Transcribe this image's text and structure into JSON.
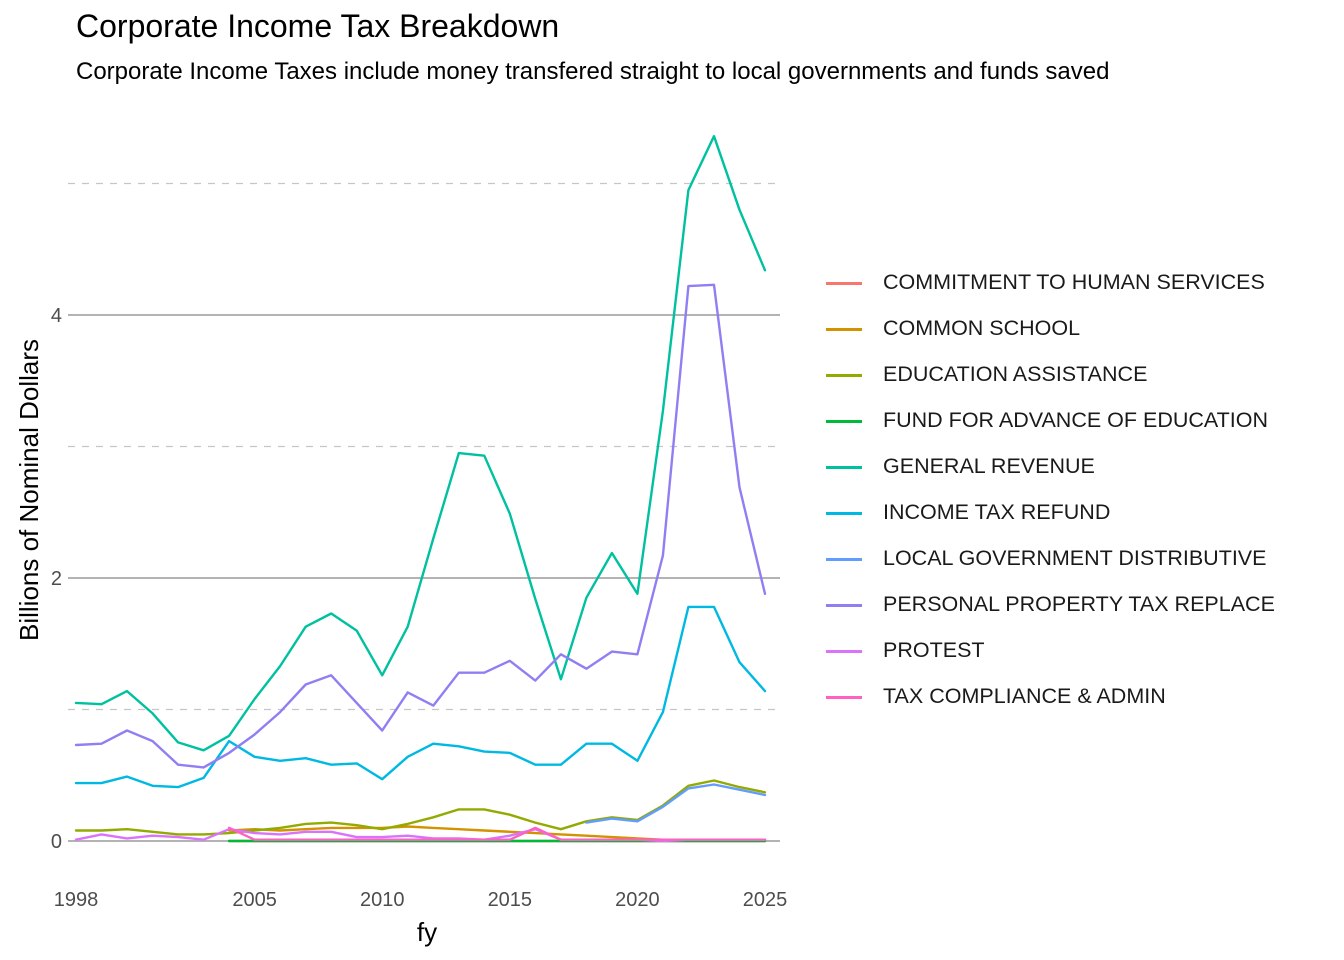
{
  "chart_data": {
    "type": "line",
    "title": "Corporate Income Tax Breakdown",
    "subtitle": "Corporate Income Taxes include money transfered straight to local governments and funds saved",
    "xlabel": "fy",
    "ylabel": "Billions of Nominal Dollars",
    "xlim": [
      1998,
      2025
    ],
    "ylim": [
      -0.4,
      5.4
    ],
    "x_ticks": [
      1998,
      2005,
      2010,
      2015,
      2020,
      2025
    ],
    "y_ticks": [
      0,
      2,
      4
    ],
    "y_minor_ticks": [
      1,
      3,
      5
    ],
    "grid": true,
    "legend_position": "right",
    "x": [
      1998,
      1999,
      2000,
      2001,
      2002,
      2003,
      2004,
      2005,
      2006,
      2007,
      2008,
      2009,
      2010,
      2011,
      2012,
      2013,
      2014,
      2015,
      2016,
      2017,
      2018,
      2019,
      2020,
      2021,
      2022,
      2023,
      2024,
      2025
    ],
    "series": [
      {
        "name": "COMMITMENT TO HUMAN SERVICES",
        "color": "#F8766D",
        "values": [
          null,
          null,
          null,
          null,
          null,
          null,
          0.0,
          0.0,
          0.0,
          0.0,
          0.0,
          0.0,
          0.0,
          0.0,
          0.0,
          0.0,
          0.0,
          0.0,
          0.0,
          0.0,
          0.0,
          0.0,
          0.0,
          0.0,
          0.0,
          0.0,
          0.0,
          0.0
        ]
      },
      {
        "name": "COMMON SCHOOL",
        "color": "#D39200",
        "values": [
          null,
          null,
          null,
          null,
          null,
          null,
          0.08,
          0.09,
          0.08,
          0.09,
          0.1,
          0.1,
          0.1,
          0.11,
          0.1,
          0.09,
          0.08,
          0.07,
          0.06,
          0.05,
          0.04,
          0.03,
          0.02,
          0.01,
          0.01,
          0.01,
          0.01,
          0.01
        ]
      },
      {
        "name": "EDUCATION ASSISTANCE",
        "color": "#93AA00",
        "values": [
          0.08,
          0.08,
          0.09,
          0.07,
          0.05,
          0.05,
          0.06,
          0.08,
          0.1,
          0.13,
          0.14,
          0.12,
          0.09,
          0.13,
          0.18,
          0.24,
          0.24,
          0.2,
          0.14,
          0.09,
          0.15,
          0.18,
          0.16,
          0.27,
          0.42,
          0.46,
          0.41,
          0.37
        ]
      },
      {
        "name": "FUND FOR ADVANCE OF EDUCATION",
        "color": "#00BA38",
        "values": [
          null,
          null,
          null,
          null,
          null,
          null,
          0.0,
          0.0,
          0.0,
          0.0,
          0.0,
          0.0,
          0.0,
          0.0,
          0.0,
          0.0,
          0.0,
          0.0,
          0.0,
          0.0,
          0.0,
          0.0,
          0.0,
          0.0,
          0.0,
          0.0,
          0.0,
          0.0
        ]
      },
      {
        "name": "GENERAL REVENUE",
        "color": "#00C19F",
        "values": [
          1.05,
          1.04,
          1.14,
          0.97,
          0.75,
          0.69,
          0.8,
          1.08,
          1.33,
          1.63,
          1.73,
          1.6,
          1.26,
          1.63,
          2.3,
          2.95,
          2.93,
          2.49,
          1.84,
          1.23,
          1.85,
          2.19,
          1.88,
          3.27,
          4.95,
          5.36,
          4.8,
          4.34
        ]
      },
      {
        "name": "INCOME TAX REFUND",
        "color": "#00B9E3",
        "values": [
          0.44,
          0.44,
          0.49,
          0.42,
          0.41,
          0.48,
          0.76,
          0.64,
          0.61,
          0.63,
          0.58,
          0.59,
          0.47,
          0.64,
          0.74,
          0.72,
          0.68,
          0.67,
          0.58,
          0.58,
          0.74,
          0.74,
          0.61,
          0.98,
          1.78,
          1.78,
          1.36,
          1.14
        ]
      },
      {
        "name": "LOCAL GOVERNMENT DISTRIBUTIVE",
        "color": "#619CFF",
        "values": [
          null,
          null,
          null,
          null,
          null,
          null,
          null,
          null,
          null,
          null,
          null,
          null,
          null,
          null,
          null,
          null,
          null,
          null,
          null,
          null,
          0.14,
          0.17,
          0.15,
          0.26,
          0.4,
          0.43,
          0.39,
          0.35
        ]
      },
      {
        "name": "PERSONAL PROPERTY TAX REPLACE",
        "color": "#8F7FF3",
        "values": [
          0.73,
          0.74,
          0.84,
          0.76,
          0.58,
          0.56,
          0.67,
          0.81,
          0.98,
          1.19,
          1.26,
          1.05,
          0.84,
          1.13,
          1.03,
          1.28,
          1.28,
          1.37,
          1.22,
          1.42,
          1.31,
          1.44,
          1.42,
          2.17,
          4.22,
          4.23,
          2.69,
          1.88
        ]
      },
      {
        "name": "PROTEST",
        "color": "#DB72FB",
        "values": [
          0.01,
          0.05,
          0.02,
          0.04,
          0.03,
          0.01,
          0.09,
          0.06,
          0.05,
          0.07,
          0.07,
          0.03,
          0.03,
          0.04,
          0.02,
          0.02,
          0.01,
          0.04,
          0.09,
          0.01,
          0.01,
          0.01,
          0.01,
          0.0,
          0.01,
          0.01,
          0.01,
          0.01
        ]
      },
      {
        "name": "TAX COMPLIANCE & ADMIN",
        "color": "#FF61C3",
        "values": [
          null,
          null,
          null,
          null,
          null,
          null,
          0.1,
          0.01,
          0.01,
          0.01,
          0.01,
          0.01,
          0.01,
          0.01,
          0.01,
          0.01,
          0.01,
          0.01,
          0.1,
          0.01,
          0.01,
          0.01,
          0.01,
          0.01,
          0.01,
          0.01,
          0.01,
          0.01
        ]
      }
    ]
  }
}
